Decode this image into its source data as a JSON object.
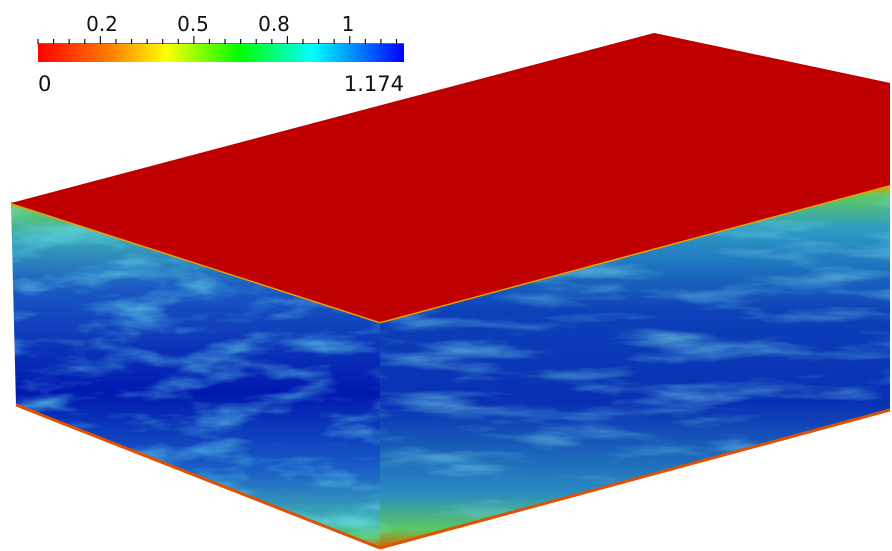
{
  "colorbar": {
    "tick_labels": [
      "0.2",
      "0.5",
      "0.8",
      "1"
    ],
    "min_label": "0",
    "max_label": "1.174",
    "colormap": [
      "#ff0000",
      "#ff8000",
      "#ffff00",
      "#00ff00",
      "#00ffff",
      "#0000ff"
    ]
  },
  "visualization": {
    "top_face_color": "#c00000",
    "wall_color": "#e9a000",
    "field_colors": {
      "deep": "#0020b0",
      "mid": "#1a60c8",
      "light": "#3fa8c8",
      "green": "#5ac870"
    }
  }
}
